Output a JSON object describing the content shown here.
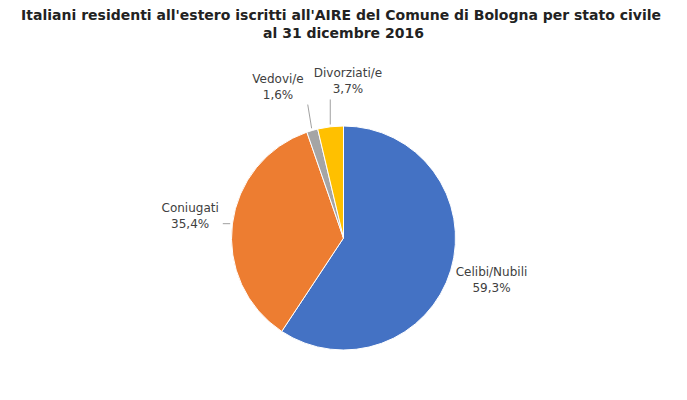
{
  "chart_data": {
    "type": "pie",
    "title": "Italiani residenti all'estero iscritti all'AIRE del Comune di Bologna per stato civile al 31 dicembre 2016",
    "categories": [
      "Celibi/Nubili",
      "Coniugati",
      "Vedovi/e",
      "Divorziati/e"
    ],
    "values": [
      59.3,
      35.4,
      1.6,
      3.7
    ],
    "value_labels": [
      "59,3%",
      "35,4%",
      "1,6%",
      "3,7%"
    ],
    "colors": [
      "#4472C4",
      "#ED7D31",
      "#A5A5A5",
      "#FFC000"
    ]
  }
}
